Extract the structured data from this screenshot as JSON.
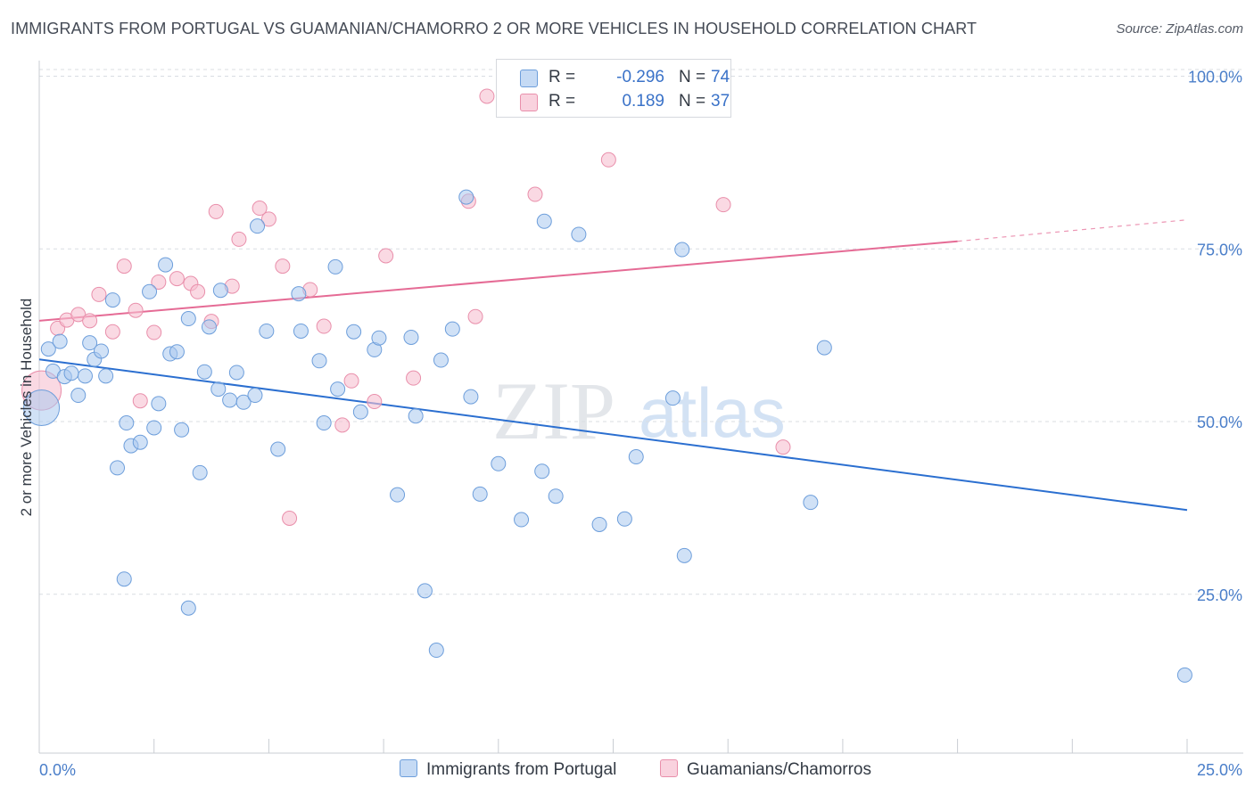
{
  "title": "IMMIGRANTS FROM PORTUGAL VS GUAMANIAN/CHAMORRO 2 OR MORE VEHICLES IN HOUSEHOLD CORRELATION CHART",
  "source": "Source: ZipAtlas.com",
  "watermark": {
    "zip": "ZIP",
    "atlas": "atlas"
  },
  "colors": {
    "blue": "#a9c8ef",
    "blue_stroke": "#6d9edb",
    "blue_line": "#2b6fd0",
    "pink": "#f6bfd0",
    "pink_stroke": "#e98fab",
    "pink_line": "#e56b95",
    "axis_text": "#4a7ec9"
  },
  "legend": {
    "rows": [
      {
        "label": "R =",
        "r": "-0.296",
        "n_label": "N =",
        "n": "74"
      },
      {
        "label": "R =",
        "r": "0.189",
        "n_label": "N =",
        "n": "37"
      }
    ]
  },
  "bottom_legend": {
    "blue": "Immigrants from Portugal",
    "pink": "Guamanians/Chamorros"
  },
  "chart_data": {
    "type": "scatter",
    "title": "IMMIGRANTS FROM PORTUGAL VS GUAMANIAN/CHAMORRO 2 OR MORE VEHICLES IN HOUSEHOLD CORRELATION CHART",
    "xlabel": "",
    "ylabel": "2 or more Vehicles in Household",
    "xlim": [
      0,
      25
    ],
    "ylim": [
      2,
      102
    ],
    "x_tick_labels": [
      "0.0%",
      "25.0%"
    ],
    "y_ticks": [
      25,
      50,
      75,
      100
    ],
    "y_tick_labels": [
      "25.0%",
      "50.0%",
      "75.0%",
      "100.0%"
    ],
    "grid": "horizontal dashed",
    "legend_position": "top-center",
    "series": [
      {
        "name": "Immigrants from Portugal",
        "color": "#a9c8ef",
        "trend": {
          "x": [
            0,
            25
          ],
          "y": [
            59.0,
            37.2
          ]
        },
        "points": [
          [
            0.05,
            52
          ],
          [
            0.2,
            60.5
          ],
          [
            0.3,
            57.3
          ],
          [
            0.45,
            61.6
          ],
          [
            0.55,
            56.5
          ],
          [
            0.7,
            57
          ],
          [
            0.85,
            53.8
          ],
          [
            1.0,
            56.6
          ],
          [
            1.1,
            61.4
          ],
          [
            1.2,
            59
          ],
          [
            1.35,
            60.2
          ],
          [
            1.45,
            56.6
          ],
          [
            1.6,
            67.6
          ],
          [
            1.9,
            49.8
          ],
          [
            2.0,
            46.5
          ],
          [
            1.7,
            43.3
          ],
          [
            2.2,
            47
          ],
          [
            2.4,
            68.8
          ],
          [
            2.5,
            49.1
          ],
          [
            2.6,
            52.6
          ],
          [
            2.75,
            72.7
          ],
          [
            2.85,
            59.8
          ],
          [
            3.0,
            60.1
          ],
          [
            3.1,
            48.8
          ],
          [
            3.25,
            64.9
          ],
          [
            3.5,
            42.6
          ],
          [
            3.6,
            57.2
          ],
          [
            3.7,
            63.7
          ],
          [
            3.9,
            54.7
          ],
          [
            3.95,
            69.0
          ],
          [
            4.15,
            53.1
          ],
          [
            4.3,
            57.1
          ],
          [
            4.45,
            52.8
          ],
          [
            4.7,
            53.8
          ],
          [
            4.75,
            78.3
          ],
          [
            4.95,
            63.1
          ],
          [
            5.2,
            46.0
          ],
          [
            5.65,
            68.5
          ],
          [
            5.7,
            63.1
          ],
          [
            6.1,
            58.8
          ],
          [
            6.2,
            49.8
          ],
          [
            6.45,
            72.4
          ],
          [
            6.5,
            54.7
          ],
          [
            6.85,
            63.0
          ],
          [
            7.0,
            51.4
          ],
          [
            7.3,
            60.4
          ],
          [
            7.4,
            62.1
          ],
          [
            7.8,
            39.4
          ],
          [
            8.1,
            62.2
          ],
          [
            8.2,
            50.8
          ],
          [
            8.4,
            25.5
          ],
          [
            8.65,
            16.9
          ],
          [
            8.75,
            58.9
          ],
          [
            9.0,
            63.4
          ],
          [
            9.3,
            82.5
          ],
          [
            9.4,
            53.6
          ],
          [
            9.6,
            39.5
          ],
          [
            10.0,
            43.9
          ],
          [
            10.5,
            35.8
          ],
          [
            10.95,
            42.8
          ],
          [
            11.0,
            79.0
          ],
          [
            11.25,
            39.2
          ],
          [
            11.75,
            77.1
          ],
          [
            12.2,
            35.1
          ],
          [
            12.75,
            35.9
          ],
          [
            13.0,
            44.9
          ],
          [
            13.8,
            53.4
          ],
          [
            14.0,
            74.9
          ],
          [
            14.05,
            30.6
          ],
          [
            1.85,
            27.2
          ],
          [
            3.25,
            23
          ],
          [
            16.8,
            38.3
          ],
          [
            17.1,
            60.7
          ],
          [
            24.95,
            13.3
          ]
        ]
      },
      {
        "name": "Guamanians/Chamorros",
        "color": "#f6bfd0",
        "trend": {
          "x": [
            0,
            20
          ],
          "y": [
            64.6,
            76.1
          ]
        },
        "trend_dashed": {
          "x": [
            20,
            25
          ],
          "y": [
            76.1,
            79.2
          ]
        },
        "points": [
          [
            0.05,
            54.5
          ],
          [
            0.4,
            63.5
          ],
          [
            0.6,
            64.7
          ],
          [
            0.85,
            65.5
          ],
          [
            1.1,
            64.6
          ],
          [
            1.3,
            68.4
          ],
          [
            1.6,
            63.0
          ],
          [
            1.85,
            72.5
          ],
          [
            2.1,
            66.1
          ],
          [
            2.2,
            53.0
          ],
          [
            2.5,
            62.9
          ],
          [
            2.6,
            70.2
          ],
          [
            3.0,
            70.7
          ],
          [
            3.3,
            70.0
          ],
          [
            3.45,
            68.8
          ],
          [
            3.75,
            64.5
          ],
          [
            3.85,
            80.4
          ],
          [
            4.2,
            69.6
          ],
          [
            4.35,
            76.4
          ],
          [
            4.8,
            80.9
          ],
          [
            5.0,
            79.3
          ],
          [
            5.3,
            72.5
          ],
          [
            5.45,
            36.0
          ],
          [
            5.9,
            69.1
          ],
          [
            6.2,
            63.8
          ],
          [
            6.6,
            49.5
          ],
          [
            6.8,
            55.9
          ],
          [
            7.3,
            52.9
          ],
          [
            7.55,
            74.0
          ],
          [
            8.15,
            56.3
          ],
          [
            9.35,
            81.9
          ],
          [
            9.5,
            65.2
          ],
          [
            9.75,
            97.1
          ],
          [
            10.8,
            82.9
          ],
          [
            12.4,
            87.9
          ],
          [
            14.9,
            81.4
          ],
          [
            16.2,
            46.3
          ]
        ]
      }
    ]
  }
}
